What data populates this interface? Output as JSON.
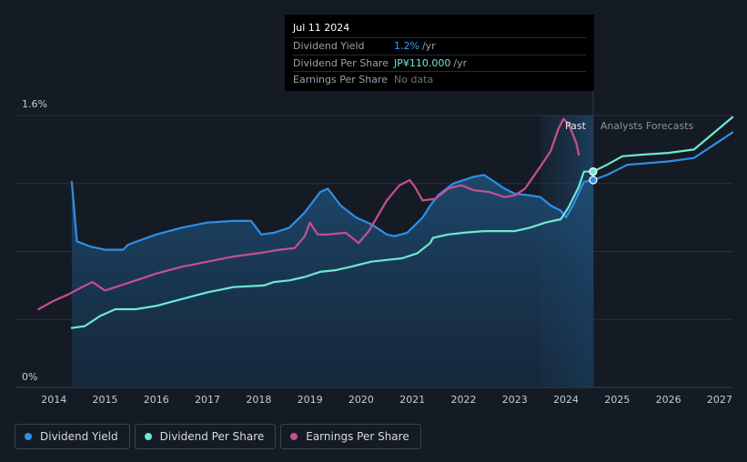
{
  "tooltip": {
    "date": "Jul 11 2024",
    "rows": [
      {
        "label": "Dividend Yield",
        "value": "1.2%",
        "unit": "/yr"
      },
      {
        "label": "Dividend Per Share",
        "value": "JP¥110.000",
        "unit": "/yr"
      },
      {
        "label": "Earnings Per Share",
        "value": "No data",
        "unit": ""
      }
    ]
  },
  "legend": [
    {
      "label": "Dividend Yield",
      "color": "#2e8fe8"
    },
    {
      "label": "Dividend Per Share",
      "color": "#6ee8d2"
    },
    {
      "label": "Earnings Per Share",
      "color": "#c94f8f"
    }
  ],
  "chart_data": {
    "type": "line",
    "y_tick_labels": [
      "1.6%",
      "0%"
    ],
    "x_tick_labels": [
      "2014",
      "2015",
      "2016",
      "2017",
      "2018",
      "2019",
      "2020",
      "2021",
      "2022",
      "2023",
      "2024",
      "2025",
      "2026",
      "2027"
    ],
    "xlim": [
      2013.25,
      2027.25
    ],
    "ylim": [
      0,
      1.6
    ],
    "past_label": "Past",
    "forecast_label": "Analysts Forecasts",
    "past_highlight_start": 2023.5,
    "today": 2024.53,
    "grid": true,
    "colors": {
      "yield": "#2e8fe8",
      "dps": "#6ee8d2",
      "eps": "#c94f8f"
    },
    "series": [
      {
        "key": "yield",
        "name": "Dividend Yield",
        "points": [
          [
            2014.35,
            1.21
          ],
          [
            2014.45,
            0.86
          ],
          [
            2014.7,
            0.83
          ],
          [
            2015.0,
            0.81
          ],
          [
            2015.35,
            0.81
          ],
          [
            2015.45,
            0.84
          ],
          [
            2016.0,
            0.9
          ],
          [
            2016.5,
            0.94
          ],
          [
            2017.0,
            0.97
          ],
          [
            2017.5,
            0.98
          ],
          [
            2017.85,
            0.98
          ],
          [
            2018.05,
            0.9
          ],
          [
            2018.3,
            0.91
          ],
          [
            2018.6,
            0.94
          ],
          [
            2018.9,
            1.03
          ],
          [
            2019.2,
            1.15
          ],
          [
            2019.35,
            1.17
          ],
          [
            2019.6,
            1.07
          ],
          [
            2019.9,
            1.0
          ],
          [
            2020.2,
            0.96
          ],
          [
            2020.5,
            0.9
          ],
          [
            2020.65,
            0.89
          ],
          [
            2020.9,
            0.91
          ],
          [
            2021.2,
            1.0
          ],
          [
            2021.35,
            1.07
          ],
          [
            2021.5,
            1.13
          ],
          [
            2021.8,
            1.2
          ],
          [
            2022.2,
            1.24
          ],
          [
            2022.4,
            1.25
          ],
          [
            2022.55,
            1.22
          ],
          [
            2022.8,
            1.17
          ],
          [
            2023.0,
            1.14
          ],
          [
            2023.3,
            1.13
          ],
          [
            2023.5,
            1.12
          ],
          [
            2023.7,
            1.07
          ],
          [
            2023.9,
            1.04
          ],
          [
            2024.0,
            1.0
          ],
          [
            2024.15,
            1.08
          ],
          [
            2024.35,
            1.21
          ],
          [
            2024.53,
            1.22
          ],
          [
            2024.8,
            1.25
          ],
          [
            2025.2,
            1.31
          ],
          [
            2026.0,
            1.33
          ],
          [
            2026.5,
            1.35
          ],
          [
            2027.25,
            1.5
          ]
        ]
      },
      {
        "key": "dps",
        "name": "Dividend Per Share",
        "points": [
          [
            2014.35,
            0.35
          ],
          [
            2014.6,
            0.36
          ],
          [
            2014.9,
            0.42
          ],
          [
            2015.2,
            0.46
          ],
          [
            2015.6,
            0.46
          ],
          [
            2016.0,
            0.48
          ],
          [
            2016.5,
            0.52
          ],
          [
            2017.0,
            0.56
          ],
          [
            2017.5,
            0.59
          ],
          [
            2018.1,
            0.6
          ],
          [
            2018.3,
            0.62
          ],
          [
            2018.6,
            0.63
          ],
          [
            2018.9,
            0.65
          ],
          [
            2019.2,
            0.68
          ],
          [
            2019.5,
            0.69
          ],
          [
            2019.8,
            0.71
          ],
          [
            2020.2,
            0.74
          ],
          [
            2020.5,
            0.75
          ],
          [
            2020.8,
            0.76
          ],
          [
            2021.1,
            0.79
          ],
          [
            2021.35,
            0.85
          ],
          [
            2021.4,
            0.88
          ],
          [
            2021.7,
            0.9
          ],
          [
            2022.0,
            0.91
          ],
          [
            2022.4,
            0.92
          ],
          [
            2022.8,
            0.92
          ],
          [
            2023.0,
            0.92
          ],
          [
            2023.3,
            0.94
          ],
          [
            2023.6,
            0.97
          ],
          [
            2023.9,
            0.99
          ],
          [
            2024.05,
            1.06
          ],
          [
            2024.25,
            1.18
          ],
          [
            2024.35,
            1.27
          ],
          [
            2024.53,
            1.27
          ],
          [
            2024.8,
            1.31
          ],
          [
            2025.1,
            1.36
          ],
          [
            2025.5,
            1.37
          ],
          [
            2026.0,
            1.38
          ],
          [
            2026.5,
            1.4
          ],
          [
            2027.25,
            1.59
          ]
        ]
      },
      {
        "key": "eps",
        "name": "Earnings Per Share",
        "points": [
          [
            2013.7,
            0.46
          ],
          [
            2014.0,
            0.51
          ],
          [
            2014.3,
            0.55
          ],
          [
            2014.55,
            0.59
          ],
          [
            2014.75,
            0.62
          ],
          [
            2015.0,
            0.57
          ],
          [
            2015.2,
            0.59
          ],
          [
            2015.6,
            0.63
          ],
          [
            2016.0,
            0.67
          ],
          [
            2016.5,
            0.71
          ],
          [
            2017.0,
            0.74
          ],
          [
            2017.5,
            0.77
          ],
          [
            2018.0,
            0.79
          ],
          [
            2018.4,
            0.81
          ],
          [
            2018.7,
            0.82
          ],
          [
            2018.9,
            0.89
          ],
          [
            2019.0,
            0.97
          ],
          [
            2019.15,
            0.9
          ],
          [
            2019.35,
            0.9
          ],
          [
            2019.7,
            0.91
          ],
          [
            2019.95,
            0.85
          ],
          [
            2020.15,
            0.92
          ],
          [
            2020.5,
            1.1
          ],
          [
            2020.75,
            1.19
          ],
          [
            2020.95,
            1.22
          ],
          [
            2021.05,
            1.18
          ],
          [
            2021.2,
            1.1
          ],
          [
            2021.45,
            1.11
          ],
          [
            2021.7,
            1.17
          ],
          [
            2021.95,
            1.19
          ],
          [
            2022.2,
            1.16
          ],
          [
            2022.5,
            1.15
          ],
          [
            2022.8,
            1.12
          ],
          [
            2023.0,
            1.13
          ],
          [
            2023.2,
            1.17
          ],
          [
            2023.5,
            1.3
          ],
          [
            2023.7,
            1.39
          ],
          [
            2023.85,
            1.52
          ],
          [
            2023.95,
            1.58
          ],
          [
            2024.05,
            1.55
          ],
          [
            2024.2,
            1.44
          ],
          [
            2024.25,
            1.37
          ]
        ]
      }
    ]
  }
}
